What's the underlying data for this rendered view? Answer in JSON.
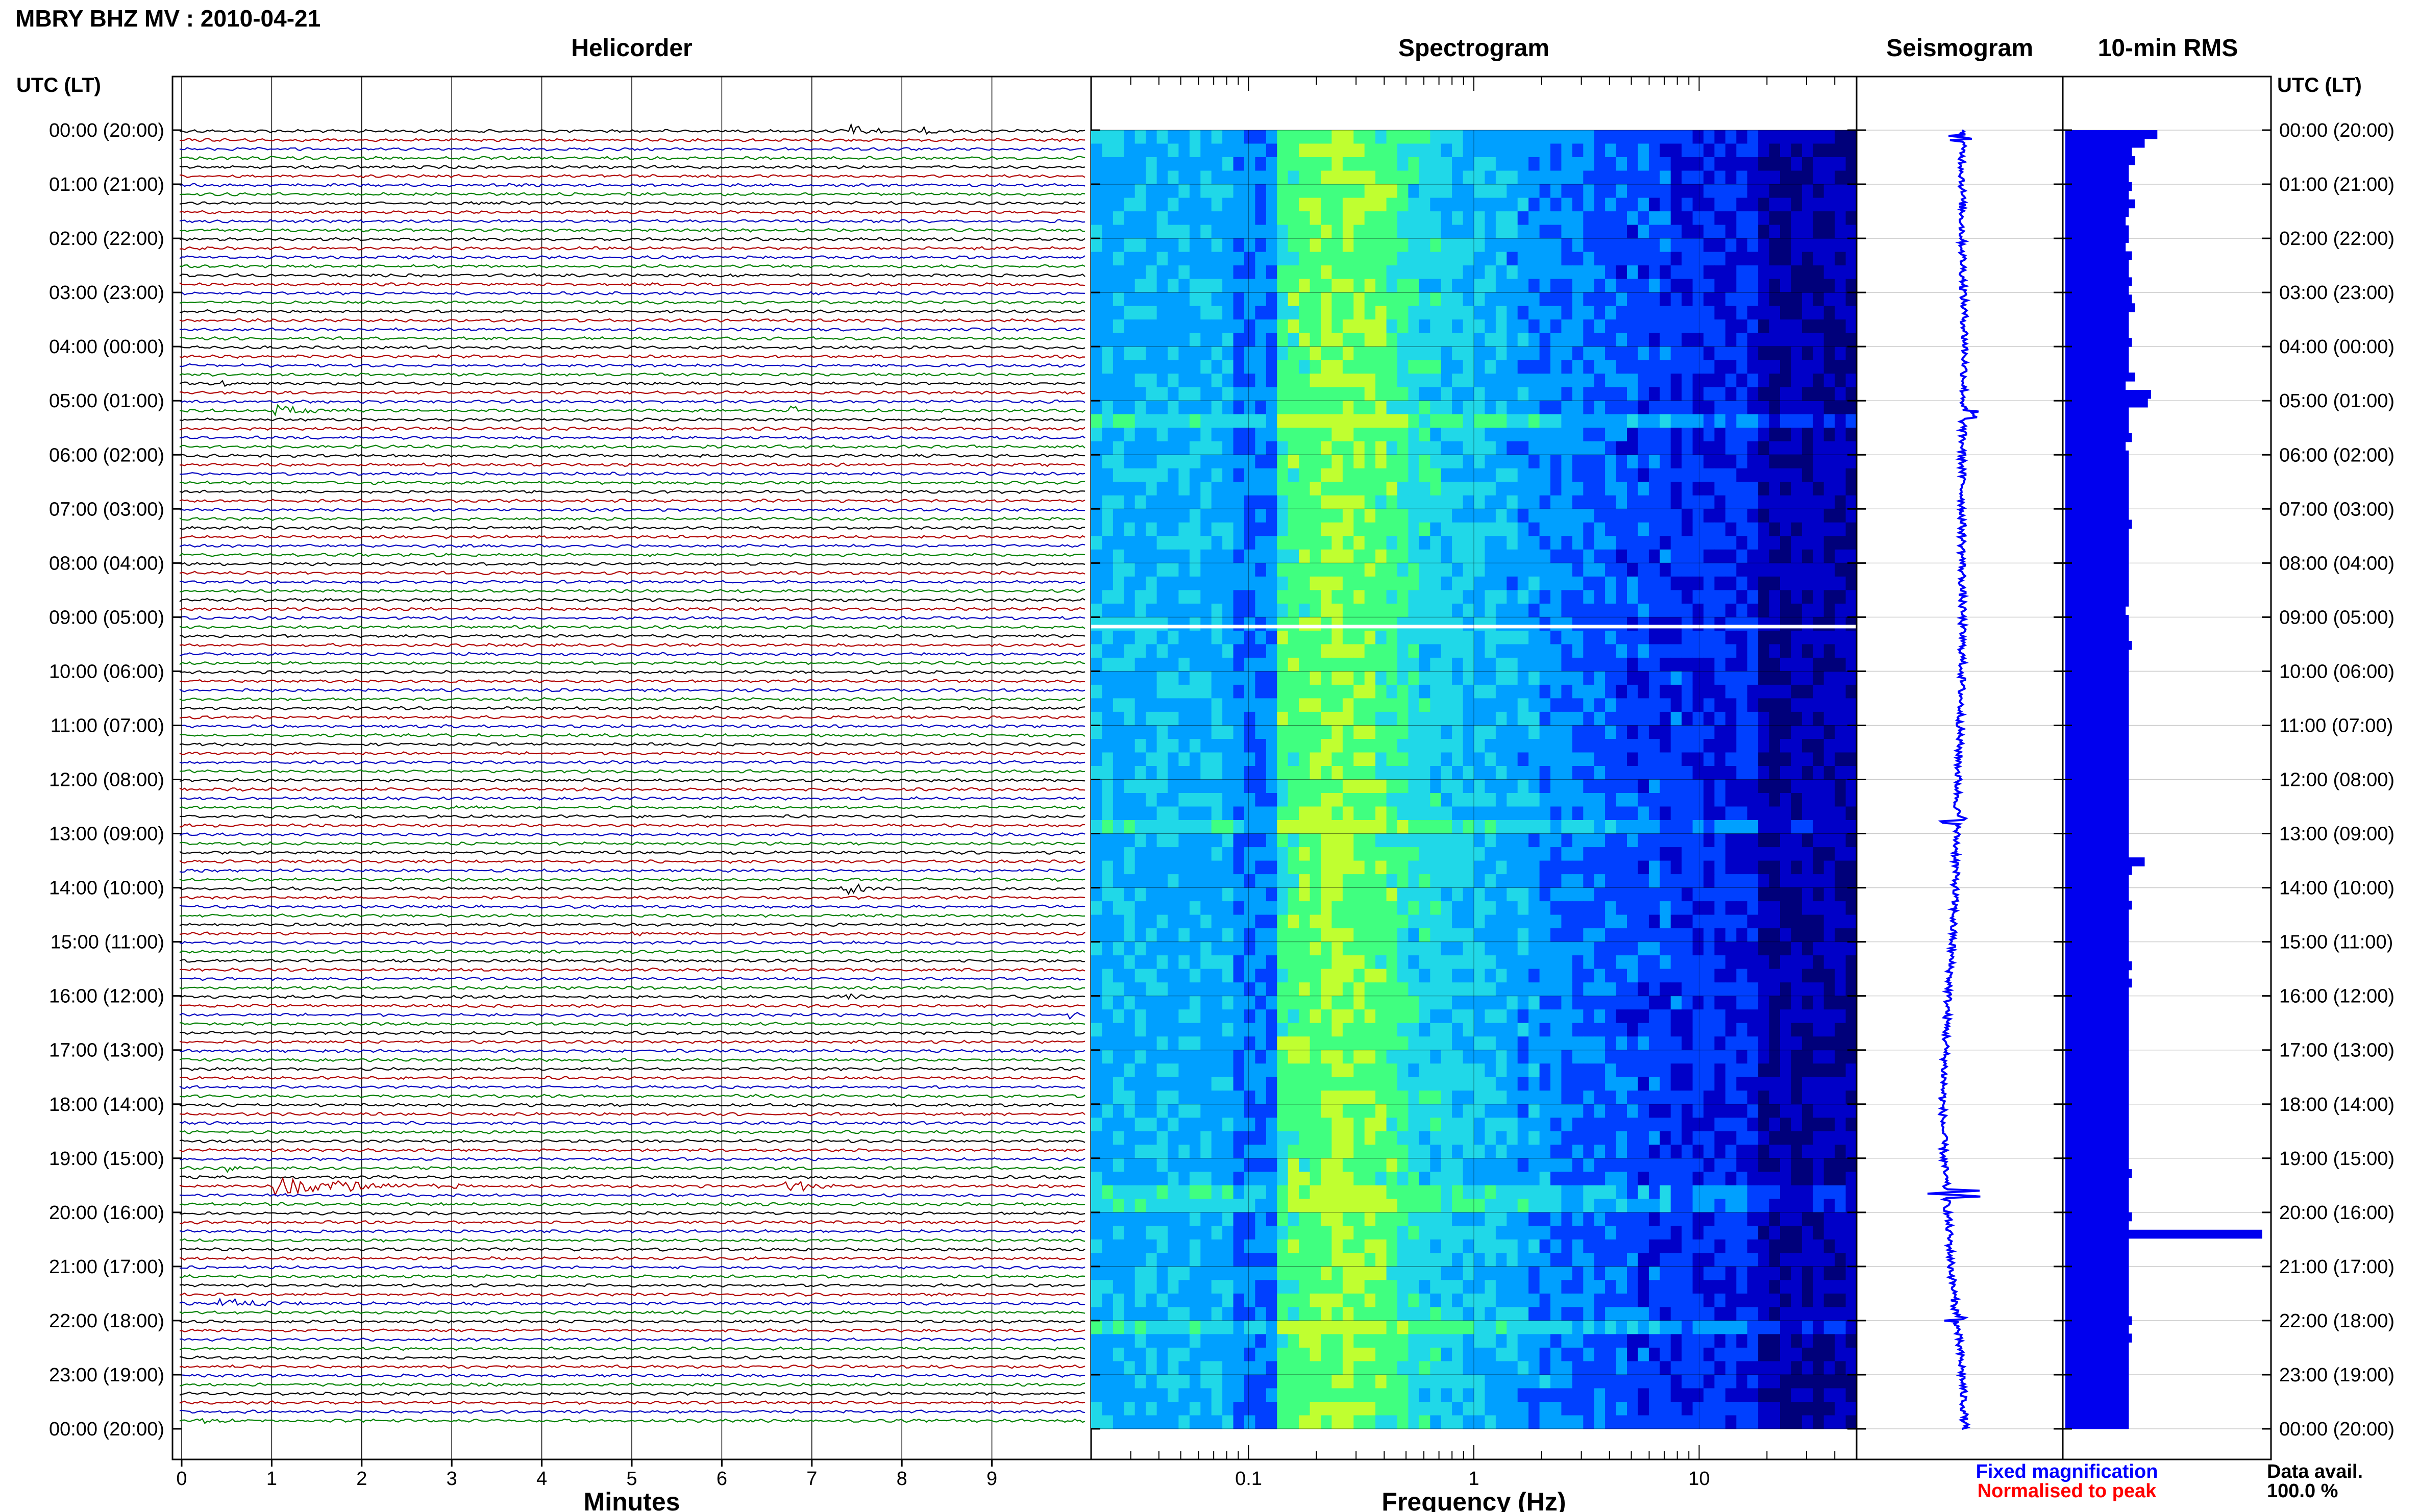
{
  "title": "MBRY BHZ MV : 2010-04-21",
  "panels": {
    "helicorder": "Helicorder",
    "spectrogram": "Spectrogram",
    "seismogram": "Seismogram",
    "rms": "10-min RMS"
  },
  "axis_header_left": "UTC (LT)",
  "axis_header_right": "UTC (LT)",
  "time_labels": [
    "00:00 (20:00)",
    "01:00 (21:00)",
    "02:00 (22:00)",
    "03:00 (23:00)",
    "04:00 (00:00)",
    "05:00 (01:00)",
    "06:00 (02:00)",
    "07:00 (03:00)",
    "08:00 (04:00)",
    "09:00 (05:00)",
    "10:00 (06:00)",
    "11:00 (07:00)",
    "12:00 (08:00)",
    "13:00 (09:00)",
    "14:00 (10:00)",
    "15:00 (11:00)",
    "16:00 (12:00)",
    "17:00 (13:00)",
    "18:00 (14:00)",
    "19:00 (15:00)",
    "20:00 (16:00)",
    "21:00 (17:00)",
    "22:00 (18:00)",
    "23:00 (19:00)",
    "00:00 (20:00)"
  ],
  "legend": {
    "fixed": "Fixed magnification",
    "normalised": "Normalised to peak",
    "data_avail_label": "Data avail.",
    "data_avail_value": "100.0 %"
  },
  "colors": {
    "fixed": "#0000ff",
    "normalised": "#ff0000",
    "trace_cycle": [
      "#000000",
      "#b00000",
      "#0000c0",
      "#008000"
    ],
    "rms_bar": "#0000ee",
    "seis_line": "#0000ff"
  },
  "chart_data": [
    {
      "type": "line",
      "panel": "helicorder",
      "xlabel": "Minutes",
      "xticks": [
        0,
        1,
        2,
        3,
        4,
        5,
        6,
        7,
        8,
        9
      ],
      "xlim": [
        0,
        10
      ],
      "ylim": [
        "00:00",
        "24:00"
      ],
      "rows": 144,
      "row_minutes": 10,
      "events": [
        {
          "row": 0,
          "minute": 7.45,
          "amp": 1.6,
          "dur": 0.45
        },
        {
          "row": 0,
          "minute": 8.25,
          "amp": 0.8,
          "dur": 0.3
        },
        {
          "row": 28,
          "minute": 0.5,
          "amp": 0.8,
          "dur": 0.2
        },
        {
          "row": 31,
          "minute": 1.1,
          "amp": 1.0,
          "dur": 1.1
        },
        {
          "row": 31,
          "minute": 6.8,
          "amp": 0.9,
          "dur": 0.25
        },
        {
          "row": 84,
          "minute": 7.35,
          "amp": 1.2,
          "dur": 0.7
        },
        {
          "row": 89,
          "minute": 4.95,
          "amp": 0.6,
          "dur": 0.4
        },
        {
          "row": 96,
          "minute": 7.4,
          "amp": 0.5,
          "dur": 1.1
        },
        {
          "row": 98,
          "minute": 9.85,
          "amp": 0.7,
          "dur": 0.15
        },
        {
          "row": 115,
          "minute": 0.55,
          "amp": 0.8,
          "dur": 0.2
        },
        {
          "row": 117,
          "minute": 1.05,
          "amp": 2.0,
          "dur": 2.2
        },
        {
          "row": 117,
          "minute": 6.7,
          "amp": 1.5,
          "dur": 0.6
        },
        {
          "row": 130,
          "minute": 0.45,
          "amp": 1.2,
          "dur": 1.0
        },
        {
          "row": 143,
          "minute": 0.25,
          "amp": 0.6,
          "dur": 0.4
        }
      ]
    },
    {
      "type": "heatmap",
      "panel": "spectrogram",
      "xlabel": "Frequency (Hz)",
      "xscale": "log",
      "xlim": [
        0.02,
        50
      ],
      "xticks": [
        0.1,
        1,
        10
      ],
      "xtick_labels": [
        "0.1",
        "1",
        "10"
      ],
      "colormap": [
        "#00007a",
        "#0000c8",
        "#0040ff",
        "#00a0ff",
        "#20d8e8",
        "#40ff80",
        "#c0ff30"
      ],
      "data_gap_hour": 9.17
    },
    {
      "type": "line",
      "panel": "seismogram",
      "hours": [
        0,
        2,
        4,
        6,
        8,
        10,
        12,
        14,
        15,
        16,
        17,
        18,
        19,
        19.8,
        20.5,
        21,
        22,
        23,
        24
      ],
      "offset": [
        0,
        0,
        0.1,
        0,
        0,
        0,
        -0.15,
        -0.25,
        -0.35,
        -0.5,
        -0.6,
        -0.7,
        -0.65,
        -0.55,
        -0.45,
        -0.4,
        -0.2,
        0,
        0.1
      ],
      "spikes": [
        {
          "hour": 0.15,
          "amp": 1.0
        },
        {
          "hour": 5.25,
          "amp": 0.9
        },
        {
          "hour": 12.75,
          "amp": 0.7
        },
        {
          "hour": 19.65,
          "amp": 1.6
        },
        {
          "hour": 21.95,
          "amp": 0.6
        }
      ]
    },
    {
      "type": "bar",
      "panel": "rms",
      "bin_minutes": 10,
      "xlim": [
        0,
        3.2
      ],
      "baseline": 0.95,
      "values": [
        1.45,
        1.25,
        1.05,
        1.1,
        1.0,
        1.0,
        1.05,
        1.0,
        1.1,
        1.0,
        0.95,
        1.0,
        1.0,
        0.95,
        1.05,
        1.0,
        1.0,
        1.05,
        1.0,
        1.05,
        1.1,
        1.0,
        1.0,
        1.0,
        1.05,
        1.0,
        1.0,
        1.0,
        1.1,
        0.95,
        1.35,
        1.3,
        1.0,
        1.0,
        1.0,
        1.05,
        0.95,
        1.0,
        1.0,
        1.0,
        1.0,
        1.0,
        1.0,
        1.0,
        1.0,
        1.05,
        1.0,
        1.0,
        1.0,
        1.0,
        1.0,
        1.0,
        1.0,
        1.0,
        1.0,
        0.95,
        1.0,
        1.0,
        1.0,
        1.05,
        1.0,
        1.0,
        1.0,
        1.0,
        1.0,
        1.0,
        1.0,
        1.0,
        1.0,
        1.0,
        1.0,
        1.0,
        1.0,
        1.0,
        1.0,
        1.0,
        1.0,
        1.0,
        1.0,
        1.0,
        1.0,
        1.0,
        1.0,
        1.0,
        1.25,
        1.05,
        1.0,
        1.0,
        1.0,
        1.05,
        1.0,
        1.0,
        1.0,
        1.0,
        1.0,
        1.0,
        1.05,
        1.0,
        1.05,
        1.0,
        1.0,
        1.0,
        1.0,
        1.0,
        1.0,
        1.0,
        1.0,
        1.0,
        1.0,
        1.0,
        1.0,
        1.0,
        1.0,
        1.0,
        1.0,
        1.0,
        1.0,
        1.0,
        1.0,
        1.0,
        1.05,
        1.0,
        1.0,
        1.0,
        1.0,
        1.05,
        1.0,
        3.1,
        1.0,
        1.0,
        1.0,
        1.0,
        1.0,
        1.0,
        1.0,
        1.0,
        1.0,
        1.05,
        1.0,
        1.05,
        1.0,
        1.0,
        1.0,
        1.0,
        1.0,
        1.0,
        1.0,
        1.0,
        1.0,
        1.0
      ]
    }
  ]
}
